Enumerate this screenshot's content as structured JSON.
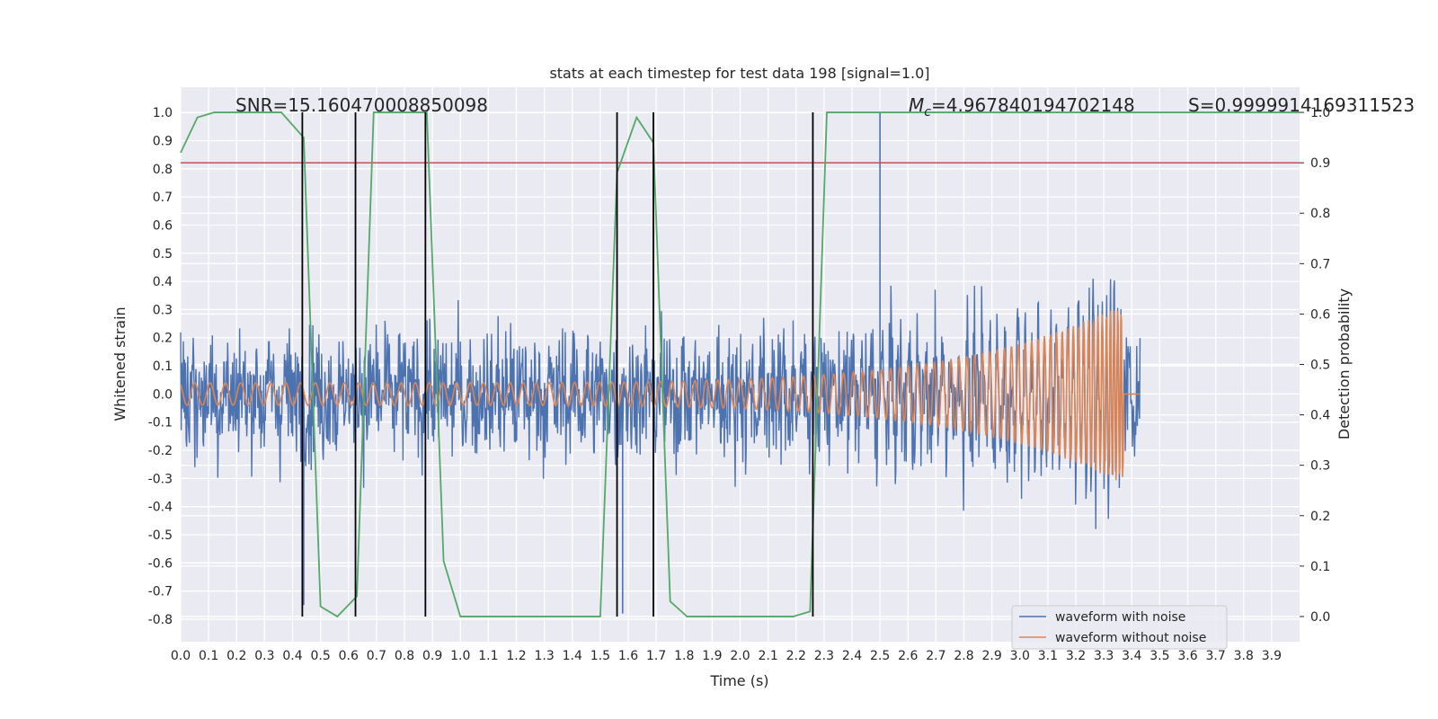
{
  "chart_data": {
    "type": "line",
    "title": "stats at each timestep for test data 198 [signal=1.0]",
    "xlabel": "Time (s)",
    "ylabel_left": "Whitened strain",
    "ylabel_right": "Detection probability",
    "xlim": [
      0.0,
      4.0
    ],
    "ylim_left": [
      -0.88,
      1.09
    ],
    "ylim_right": [
      -0.05,
      1.05
    ],
    "x_ticks": [
      "0.0",
      "0.1",
      "0.2",
      "0.3",
      "0.4",
      "0.5",
      "0.6",
      "0.7",
      "0.8",
      "0.9",
      "1.0",
      "1.1",
      "1.2",
      "1.3",
      "1.4",
      "1.5",
      "1.6",
      "1.7",
      "1.8",
      "1.9",
      "2.0",
      "2.1",
      "2.2",
      "2.3",
      "2.4",
      "2.5",
      "2.6",
      "2.7",
      "2.8",
      "2.9",
      "3.0",
      "3.1",
      "3.2",
      "3.3",
      "3.4",
      "3.5",
      "3.6",
      "3.7",
      "3.8",
      "3.9"
    ],
    "y_ticks_left": [
      "-0.8",
      "-0.7",
      "-0.6",
      "-0.5",
      "-0.4",
      "-0.3",
      "-0.2",
      "-0.1",
      "0.0",
      "0.1",
      "0.2",
      "0.3",
      "0.4",
      "0.5",
      "0.6",
      "0.7",
      "0.8",
      "0.9",
      "1.0"
    ],
    "y_ticks_right": [
      "0.0",
      "0.1",
      "0.2",
      "0.3",
      "0.4",
      "0.5",
      "0.6",
      "0.7",
      "0.8",
      "0.9",
      "1.0"
    ],
    "annotations": {
      "snr": "SNR=15.160470008850098",
      "mc_symbol": "M",
      "mc_sub": "c",
      "mc_value": "=4.967840194702148",
      "s": "S=0.9999914169311523"
    },
    "legend": {
      "placement": "lower-right",
      "entries": [
        {
          "label": "waveform with noise",
          "color": "#4c72b0"
        },
        {
          "label": "waveform without noise",
          "color": "#dd8452"
        }
      ]
    },
    "series": [
      {
        "name": "waveform with noise",
        "color": "#4c72b0",
        "axis": "left",
        "kind": "noise",
        "std": 0.22,
        "peak_high": 1.0,
        "peak_low": -0.78
      },
      {
        "name": "waveform without noise",
        "color": "#dd8452",
        "axis": "left",
        "kind": "chirp",
        "start_amplitude": 0.04,
        "end_amplitude": 0.32,
        "end_time": 3.37
      },
      {
        "name": "detection probability",
        "color": "#55a868",
        "axis": "right",
        "x": [
          0.0,
          0.06,
          0.12,
          0.18,
          0.24,
          0.3,
          0.36,
          0.44,
          0.5,
          0.56,
          0.63,
          0.69,
          0.75,
          0.81,
          0.88,
          0.94,
          1.0,
          1.06,
          1.12,
          1.19,
          1.25,
          1.31,
          1.37,
          1.44,
          1.5,
          1.56,
          1.63,
          1.69,
          1.75,
          1.81,
          1.88,
          1.94,
          2.0,
          2.06,
          2.12,
          2.19,
          2.25,
          2.31,
          2.37,
          2.44,
          2.5,
          2.56,
          2.62,
          2.69,
          2.75,
          2.81,
          2.87,
          2.94,
          3.0,
          3.06,
          3.12,
          3.19,
          3.25,
          3.31,
          3.37,
          3.44,
          3.5,
          3.56,
          3.62,
          3.69,
          3.75,
          3.81,
          3.87,
          3.94,
          4.0
        ],
        "y": [
          0.92,
          0.99,
          1.0,
          1.0,
          1.0,
          1.0,
          1.0,
          0.95,
          0.02,
          0.0,
          0.04,
          1.0,
          1.0,
          1.0,
          1.0,
          0.11,
          0.0,
          0.0,
          0.0,
          0.0,
          0.0,
          0.0,
          0.0,
          0.0,
          0.0,
          0.88,
          0.99,
          0.94,
          0.03,
          0.0,
          0.0,
          0.0,
          0.0,
          0.0,
          0.0,
          0.0,
          0.01,
          1.0,
          1.0,
          1.0,
          1.0,
          1.0,
          1.0,
          1.0,
          1.0,
          1.0,
          1.0,
          1.0,
          1.0,
          1.0,
          1.0,
          1.0,
          1.0,
          1.0,
          1.0,
          1.0,
          1.0,
          1.0,
          1.0,
          1.0,
          1.0,
          1.0,
          1.0,
          1.0,
          1.0
        ]
      }
    ],
    "threshold": {
      "axis": "right",
      "value": 0.9,
      "color": "#c44e52"
    },
    "vertical_lines": [
      0.435,
      0.625,
      0.875,
      1.56,
      1.69,
      2.26
    ]
  }
}
